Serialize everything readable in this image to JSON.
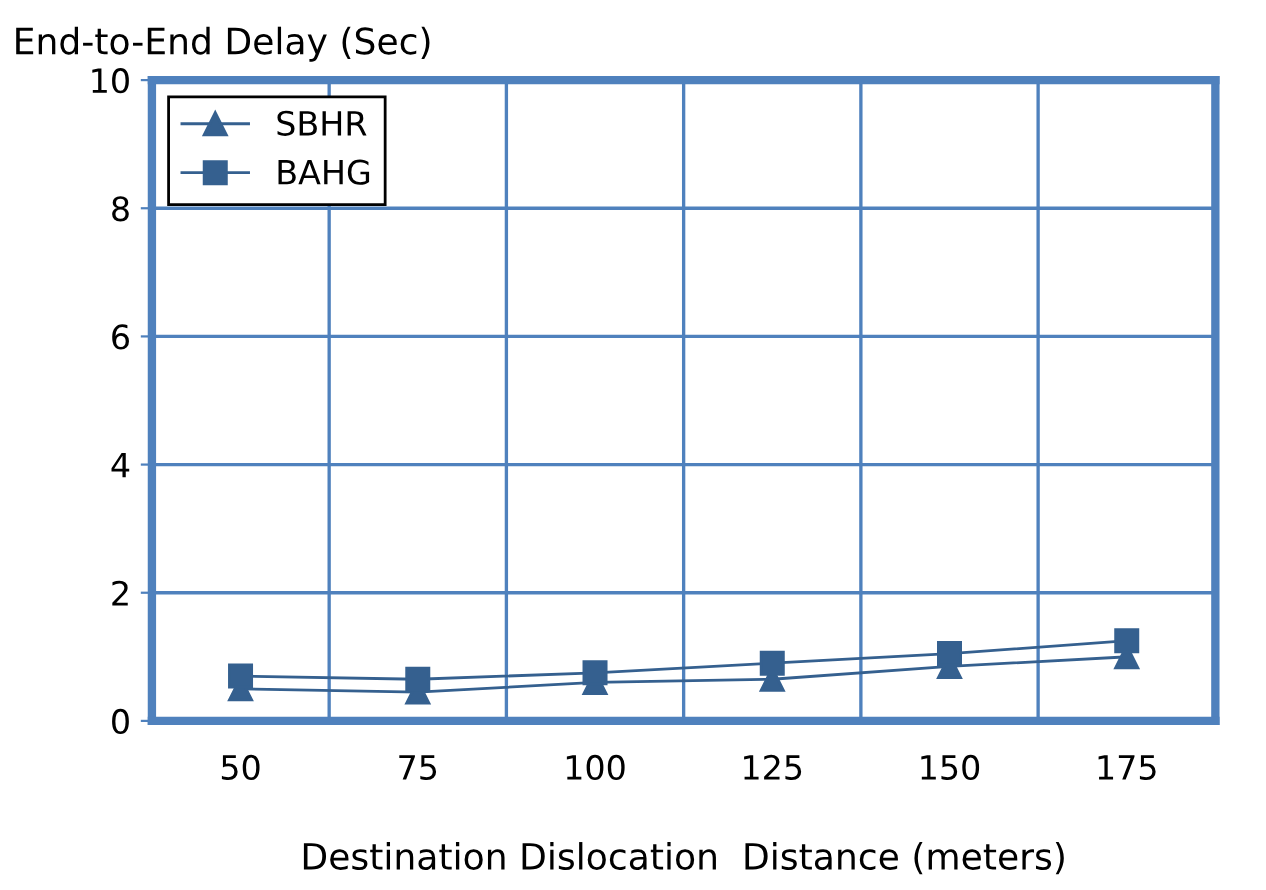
{
  "chart_data": {
    "type": "line",
    "title": "End-to-End Delay (Sec)",
    "xlabel": "Destination Dislocation  Distance (meters)",
    "categories": [
      "50",
      "75",
      "100",
      "125",
      "150",
      "175"
    ],
    "series": [
      {
        "name": "SBHR",
        "color": "#35608f",
        "marker": "triangle",
        "values": [
          0.5,
          0.45,
          0.6,
          0.65,
          0.85,
          1.0
        ]
      },
      {
        "name": "BAHG",
        "color": "#35608f",
        "marker": "square",
        "values": [
          0.7,
          0.65,
          0.75,
          0.9,
          1.05,
          1.25
        ]
      }
    ],
    "ylim": [
      0,
      10
    ],
    "yticks": [
      0,
      2,
      4,
      6,
      8,
      10
    ],
    "grid": true,
    "legend": "top left",
    "line_style": "solid"
  }
}
